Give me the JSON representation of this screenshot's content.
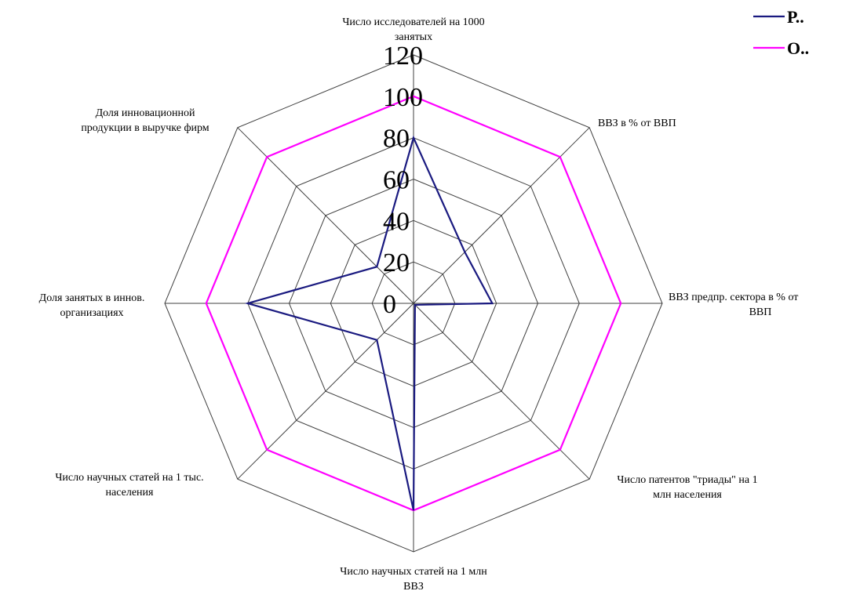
{
  "chart_data": {
    "type": "radar",
    "axes": [
      [
        "Число исследователей на 1000",
        "занятых"
      ],
      [
        "ВВЗ в % от ВВП"
      ],
      [
        "ВВЗ предпр. сектора в % от",
        "ВВП"
      ],
      [
        "Число патентов \"триады\" на 1",
        "млн населения"
      ],
      [
        "Число научных статей на 1 млн",
        "ВВЗ"
      ],
      [
        "Число научных статей на 1 тыс.",
        "населения"
      ],
      [
        "Доля занятых в иннов.",
        "организациях"
      ],
      [
        "Доля инновационной",
        "продукции в выручке фирм"
      ]
    ],
    "ticks": [
      "0",
      "20",
      "40",
      "60",
      "80",
      "100",
      "120"
    ],
    "rlim": [
      0,
      120
    ],
    "series": [
      {
        "name": "Р..",
        "color": "#1a1a80",
        "values": [
          80,
          35,
          38,
          1,
          100,
          25,
          80,
          25
        ]
      },
      {
        "name": "О..",
        "color": "#ff00ff",
        "values": [
          100,
          100,
          100,
          100,
          100,
          100,
          100,
          100
        ]
      }
    ],
    "legend": "top-right",
    "grid": true,
    "grid_color": "#404040"
  }
}
